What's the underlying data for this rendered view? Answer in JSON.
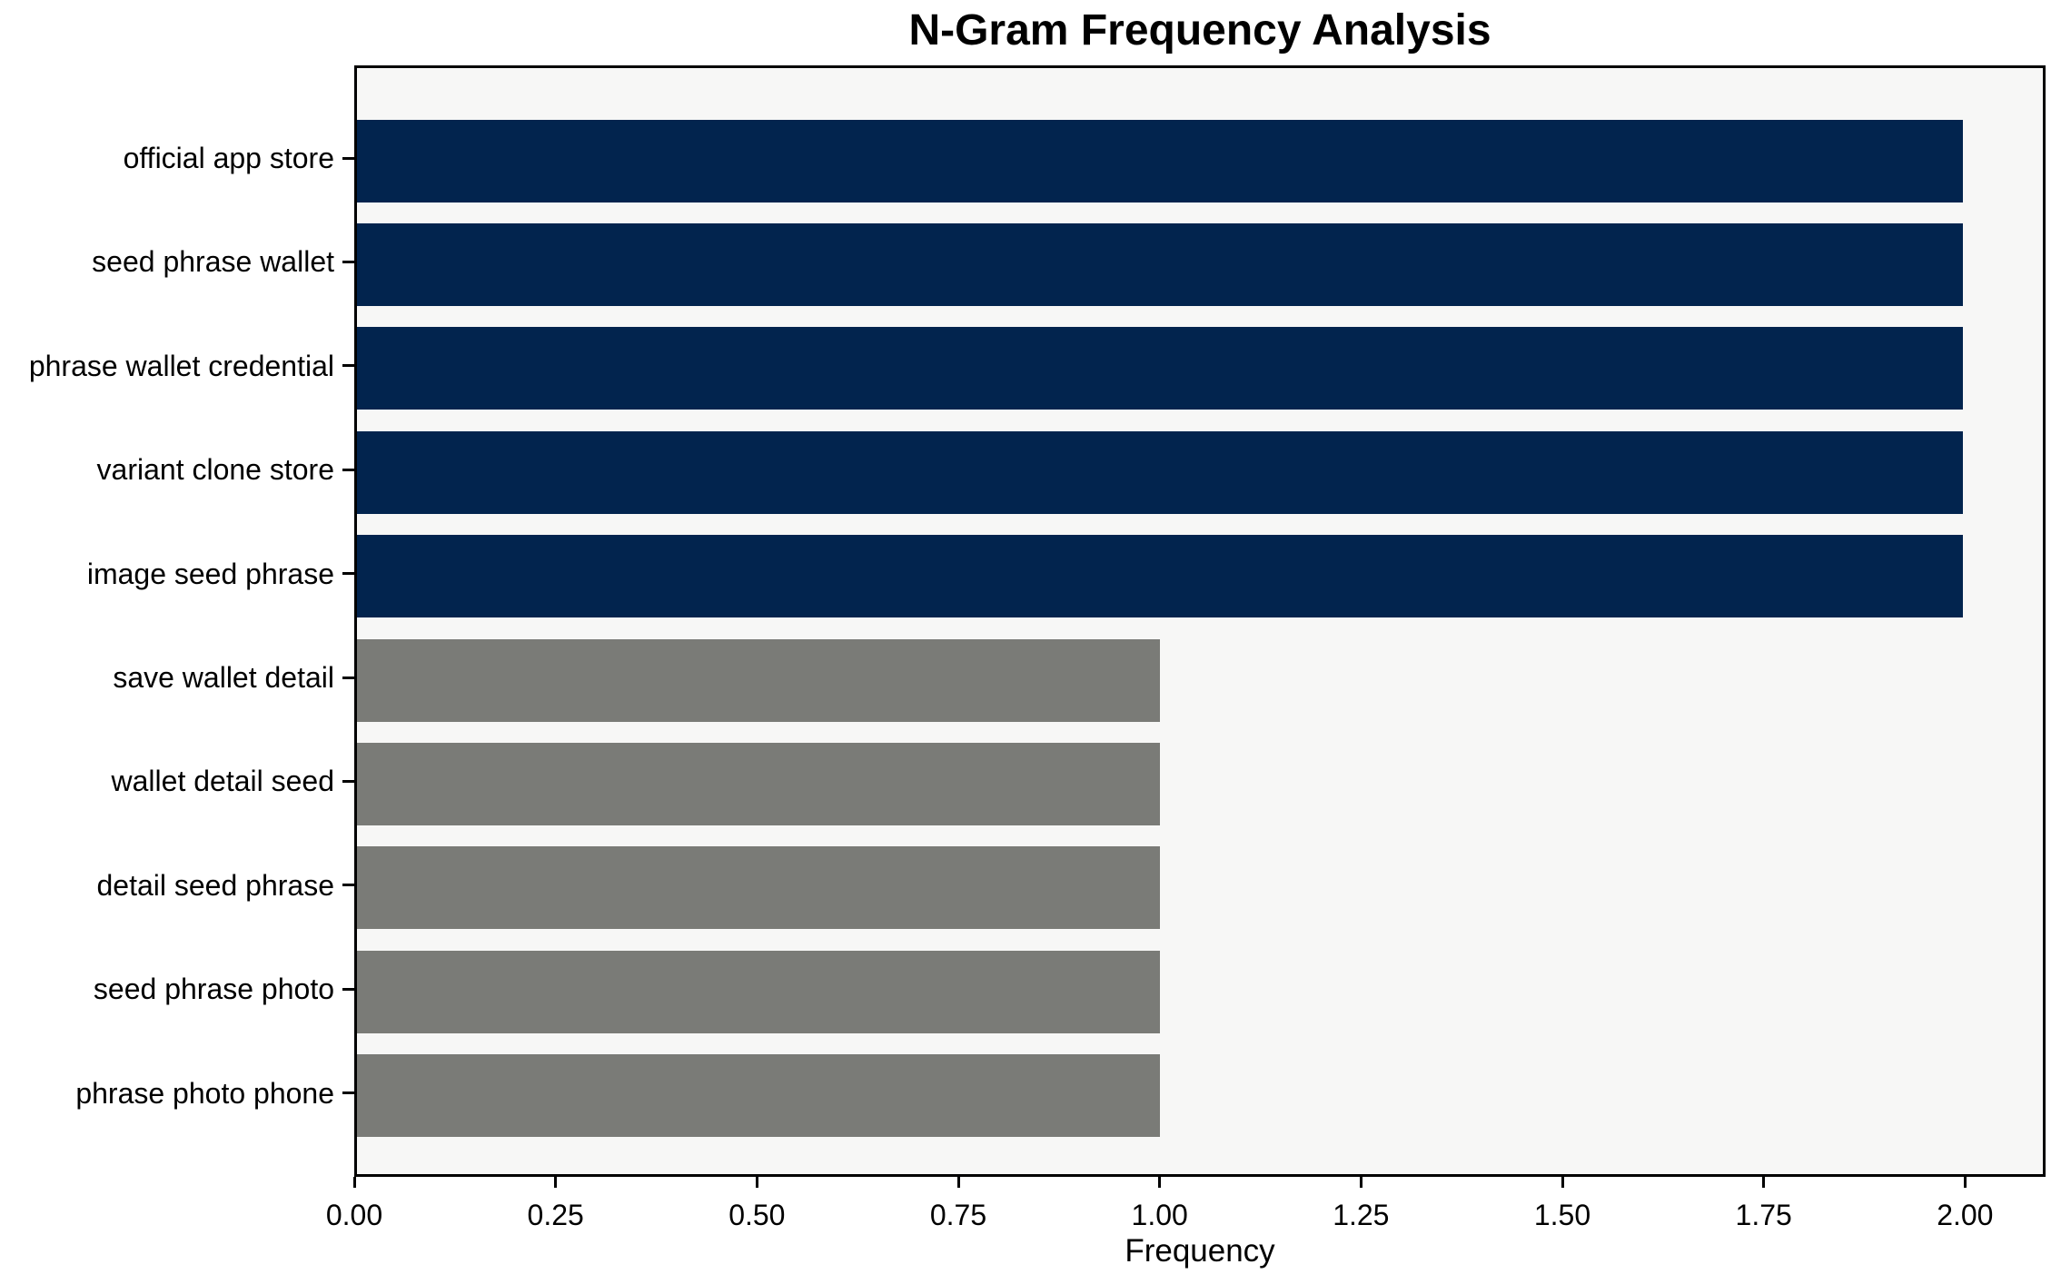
{
  "chart_data": {
    "type": "bar",
    "orientation": "horizontal",
    "title": "N-Gram Frequency Analysis",
    "xlabel": "Frequency",
    "ylabel": "",
    "categories": [
      "official app store",
      "seed phrase wallet",
      "phrase wallet credential",
      "variant clone store",
      "image seed phrase",
      "save wallet detail",
      "wallet detail seed",
      "detail seed phrase",
      "seed phrase photo",
      "phrase photo phone"
    ],
    "values": [
      2,
      2,
      2,
      2,
      2,
      1,
      1,
      1,
      1,
      1
    ],
    "bar_colors": [
      "#02244E",
      "#02244E",
      "#02244E",
      "#02244E",
      "#02244E",
      "#7A7B77",
      "#7A7B77",
      "#7A7B77",
      "#7A7B77",
      "#7A7B77"
    ],
    "xticks": [
      0.0,
      0.25,
      0.5,
      0.75,
      1.0,
      1.25,
      1.5,
      1.75,
      2.0
    ],
    "xtick_labels": [
      "0.00",
      "0.25",
      "0.50",
      "0.75",
      "1.00",
      "1.25",
      "1.50",
      "1.75",
      "2.00"
    ],
    "xlim": [
      0,
      2.1
    ],
    "grid": false,
    "legend": null,
    "plot_background": "#F7F7F6",
    "figure_background": "#FFFFFF",
    "axis_color": "#000000",
    "text_color": "#000000"
  }
}
